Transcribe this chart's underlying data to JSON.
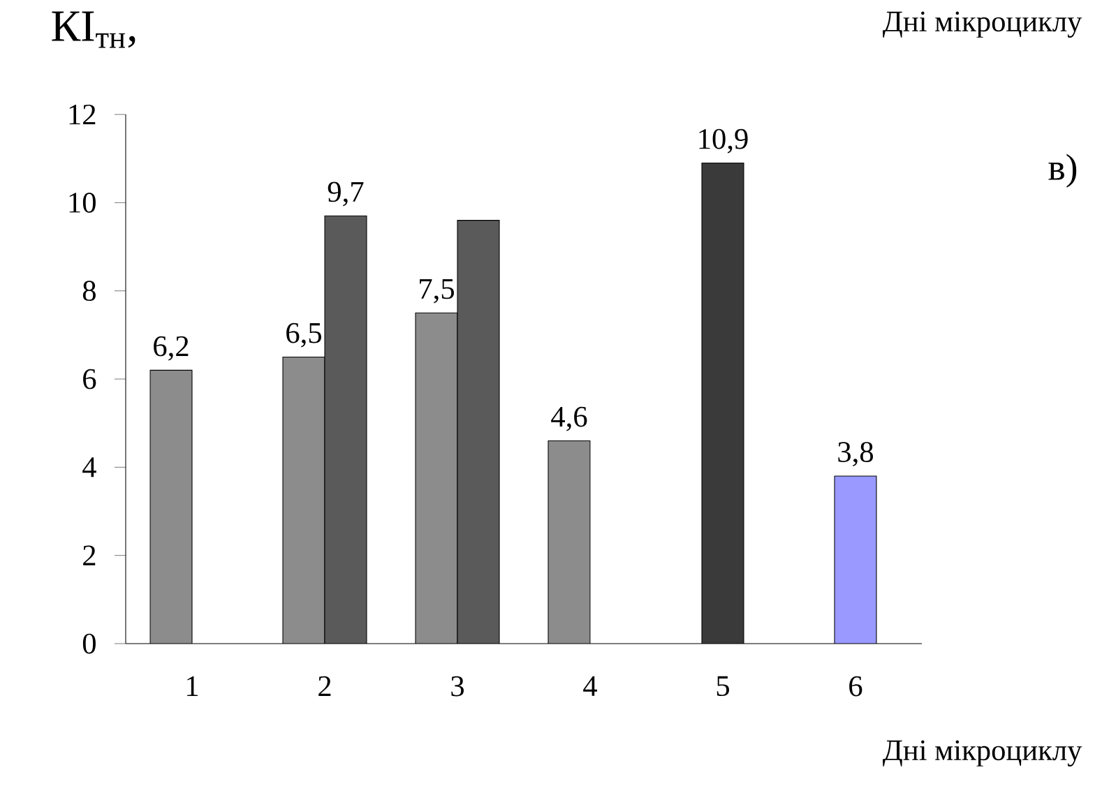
{
  "chart_data": {
    "type": "bar",
    "ylabel": "КІ$_{тн}$,",
    "xlabel": "Дні мікроциклу",
    "annotations": [
      "Дні мікроциклу",
      "в)"
    ],
    "categories": [
      "1",
      "2",
      "3",
      "4",
      "5",
      "6"
    ],
    "series": [
      {
        "color": "#8c8c8c",
        "values": [
          6.2,
          6.5,
          7.5,
          4.6,
          null,
          null
        ],
        "value_labels": [
          "6,2",
          "6,5",
          "7,5",
          "4,6",
          null,
          null
        ]
      },
      {
        "color": "#5a5a5a",
        "values": [
          null,
          9.7,
          9.6,
          null,
          null,
          null
        ],
        "value_labels": [
          null,
          "9,7",
          null,
          null,
          null,
          null
        ]
      },
      {
        "color": "#3a3a3a",
        "values": [
          null,
          null,
          null,
          null,
          10.9,
          null
        ],
        "value_labels": [
          null,
          null,
          null,
          null,
          "10,9",
          null
        ]
      },
      {
        "color": "#9999ff",
        "values": [
          null,
          null,
          null,
          null,
          null,
          3.8
        ],
        "value_labels": [
          null,
          null,
          null,
          null,
          null,
          "3,8"
        ]
      }
    ],
    "ylim": [
      0,
      12
    ],
    "yticks": [
      0,
      2,
      4,
      6,
      8,
      10,
      12
    ],
    "grid": false
  }
}
